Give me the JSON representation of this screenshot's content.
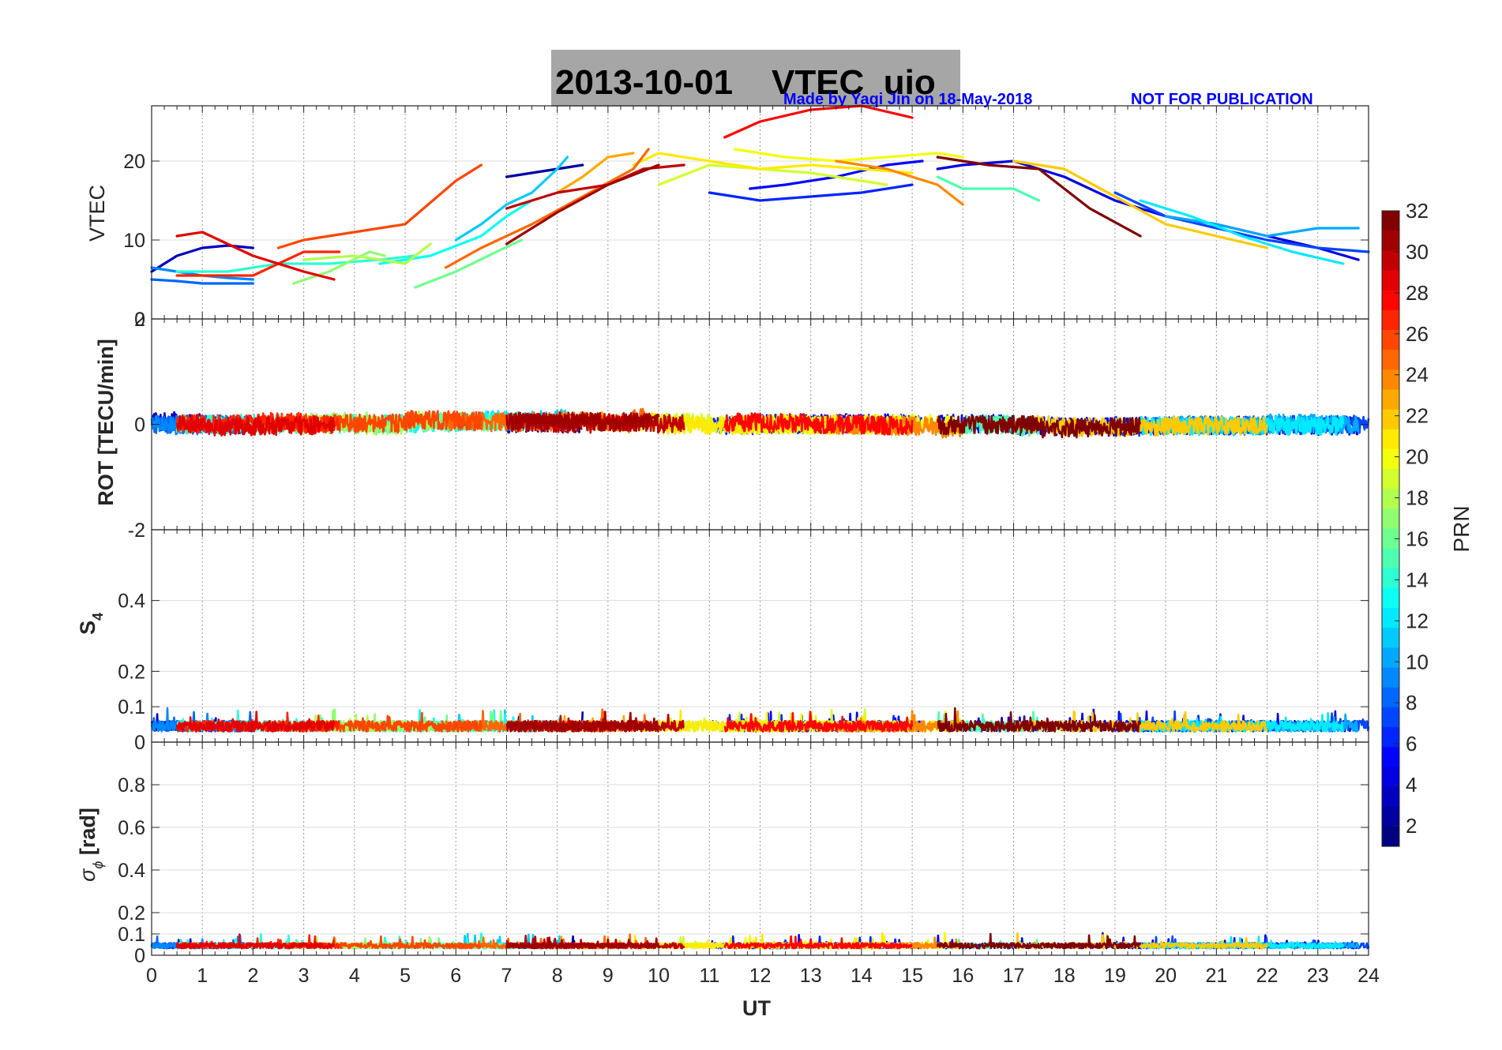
{
  "title": "2013-10-01    VTEC  uio",
  "credit": "Made by Yaqi Jin on 18-May-2018",
  "notice": "NOT FOR PUBLICATION",
  "colors": {
    "title_box": "#a6a6a6",
    "credit": "#0000ff",
    "grid": "#c8c8c8",
    "axis": "#262626"
  },
  "chart_data": [
    {
      "type": "line",
      "id": "vtec",
      "ylabel": "VTEC",
      "ylim": [
        0,
        27
      ],
      "yticks": [
        "0",
        "10",
        "20"
      ],
      "series": [
        {
          "prn": 2,
          "x": [
            7,
            7.5,
            8,
            8.5
          ],
          "y": [
            18,
            18.5,
            19,
            19.5
          ]
        },
        {
          "prn": 3,
          "x": [
            0,
            0.5,
            1,
            1.5,
            2
          ],
          "y": [
            6,
            8,
            9,
            9.3,
            9
          ]
        },
        {
          "prn": 4,
          "x": [
            15.5,
            16,
            17,
            18,
            19,
            20,
            21,
            22,
            23,
            23.8
          ],
          "y": [
            19,
            19.5,
            20,
            18,
            15,
            13,
            12,
            10.5,
            9,
            7.5
          ]
        },
        {
          "prn": 5,
          "x": [
            11.8,
            12.5,
            13.5,
            14.5,
            15.2
          ],
          "y": [
            16.5,
            17,
            18,
            19.5,
            20
          ]
        },
        {
          "prn": 6,
          "x": [
            11,
            11.5,
            12,
            13,
            14,
            15
          ],
          "y": [
            16,
            15.5,
            15,
            15.5,
            16,
            17
          ]
        },
        {
          "prn": 7,
          "x": [
            19,
            20,
            21,
            22,
            23,
            24
          ],
          "y": [
            16,
            13,
            11.5,
            10,
            9,
            8.5
          ]
        },
        {
          "prn": 8,
          "x": [
            0,
            0.5,
            1,
            2
          ],
          "y": [
            5,
            4.8,
            4.5,
            4.5
          ]
        },
        {
          "prn": 9,
          "x": [
            0,
            0.5,
            1,
            1.5,
            2
          ],
          "y": [
            6.5,
            6,
            5.5,
            5.2,
            5
          ]
        },
        {
          "prn": 10,
          "x": [
            20,
            21,
            22,
            23,
            23.8
          ],
          "y": [
            13,
            12,
            10.5,
            11.5,
            11.5
          ]
        },
        {
          "prn": 11,
          "x": [
            6,
            6.5,
            7,
            7.5,
            8,
            8.2
          ],
          "y": [
            10,
            12,
            14.5,
            16,
            19,
            20.5
          ]
        },
        {
          "prn": 12,
          "x": [
            19.5,
            20.5,
            21.5,
            22.5,
            23.5
          ],
          "y": [
            15,
            13,
            10.5,
            8.5,
            7
          ]
        },
        {
          "prn": 13,
          "x": [
            4.5,
            5.5,
            6.5,
            7,
            7.5
          ],
          "y": [
            7,
            8,
            10.5,
            13,
            15
          ]
        },
        {
          "prn": 14,
          "x": [
            0.5,
            1.5,
            2.5,
            3.5,
            4.5,
            5.2
          ],
          "y": [
            6,
            6,
            7,
            7,
            7.5,
            8
          ]
        },
        {
          "prn": 15,
          "x": [
            15.5,
            16,
            17,
            17.5
          ],
          "y": [
            18,
            16.5,
            16.5,
            15
          ]
        },
        {
          "prn": 16,
          "x": [
            5.2,
            6,
            6.8,
            7.3
          ],
          "y": [
            4,
            6,
            8.5,
            10
          ]
        },
        {
          "prn": 17,
          "x": [
            2.8,
            3.5,
            4.3,
            4.6
          ],
          "y": [
            4.5,
            6,
            8.5,
            8
          ]
        },
        {
          "prn": 18,
          "x": [
            3,
            4,
            5,
            5.5
          ],
          "y": [
            7.5,
            8,
            7,
            9.5
          ]
        },
        {
          "prn": 19,
          "x": [
            10,
            11,
            12,
            13,
            14.5
          ],
          "y": [
            17,
            19.5,
            19,
            18.5,
            17
          ]
        },
        {
          "prn": 20,
          "x": [
            11.5,
            12.5,
            13.5,
            14.5,
            15.5,
            16
          ],
          "y": [
            21.5,
            20.5,
            20,
            20.5,
            21,
            20.5
          ]
        },
        {
          "prn": 21,
          "x": [
            9.5,
            10,
            11,
            12,
            13,
            14,
            15
          ],
          "y": [
            19.5,
            21,
            20,
            19,
            19.5,
            19,
            18.5
          ]
        },
        {
          "prn": 22,
          "x": [
            17,
            18,
            19,
            20,
            21,
            22
          ],
          "y": [
            20,
            19,
            15.5,
            12,
            10.5,
            9
          ]
        },
        {
          "prn": 23,
          "x": [
            8,
            8.5,
            9,
            9.5
          ],
          "y": [
            16,
            18,
            20.5,
            21
          ]
        },
        {
          "prn": 24,
          "x": [
            13.5,
            14.5,
            15.5,
            16
          ],
          "y": [
            20,
            19,
            17,
            14.5
          ]
        },
        {
          "prn": 25,
          "x": [
            5.8,
            6.5,
            7.5,
            8.5,
            9.5,
            9.8
          ],
          "y": [
            6.5,
            9,
            12,
            15.5,
            19,
            21.5
          ]
        },
        {
          "prn": 26,
          "x": [
            2.5,
            3,
            4,
            5,
            6,
            6.5
          ],
          "y": [
            9,
            10,
            11,
            12,
            17.5,
            19.5
          ]
        },
        {
          "prn": 27,
          "x": [
            0.5,
            1,
            2,
            3,
            3.7
          ],
          "y": [
            5.5,
            5.5,
            5.5,
            8.5,
            8.5
          ]
        },
        {
          "prn": 28,
          "x": [
            11.3,
            12,
            13,
            14,
            15
          ],
          "y": [
            23,
            25,
            26.5,
            27,
            25.5
          ]
        },
        {
          "prn": 29,
          "x": [
            0.5,
            1,
            2,
            3,
            3.6
          ],
          "y": [
            10.5,
            11,
            8,
            6,
            5
          ]
        },
        {
          "prn": 30,
          "x": [
            7,
            8,
            9,
            9.7,
            10.5
          ],
          "y": [
            14,
            16,
            17,
            19,
            19.5
          ]
        },
        {
          "prn": 31,
          "x": [
            7,
            8,
            9,
            10
          ],
          "y": [
            9.5,
            13.5,
            17,
            19.5
          ]
        },
        {
          "prn": 32,
          "x": [
            15.5,
            16.5,
            17.5,
            18.5,
            19.5
          ],
          "y": [
            20.5,
            19.5,
            19,
            14,
            10.5
          ]
        }
      ]
    },
    {
      "type": "line",
      "id": "rot",
      "ylabel": "ROT [TECU/min]",
      "ylim": [
        -2,
        2
      ],
      "yticks": [
        "-2",
        "0",
        "2"
      ],
      "description": "dense noisy ROT traces per PRN, mostly within -0.3 to 0.3 TECU/min"
    },
    {
      "type": "line",
      "id": "s4",
      "ylabel_main": "S",
      "ylabel_sub": "4",
      "ylim": [
        0,
        0.6
      ],
      "yticks": [
        "0",
        "0.1",
        "0.2",
        "0.4"
      ],
      "description": "S4 index traces per PRN, mostly 0.03 to 0.08"
    },
    {
      "type": "line",
      "id": "sigma",
      "ylabel_main": "σ",
      "ylabel_sub": "ϕ",
      "ylabel_unit": " [rad]",
      "ylim": [
        0,
        1
      ],
      "yticks": [
        "0",
        "0.1",
        "0.2",
        "0.4",
        "0.6",
        "0.8"
      ],
      "description": "phase scintillation traces per PRN, mostly 0.03 to 0.08"
    }
  ],
  "x_axis": {
    "label": "UT",
    "range": [
      0,
      24
    ],
    "ticks": [
      "0",
      "1",
      "2",
      "3",
      "4",
      "5",
      "6",
      "7",
      "8",
      "9",
      "10",
      "11",
      "12",
      "13",
      "14",
      "15",
      "16",
      "17",
      "18",
      "19",
      "20",
      "21",
      "22",
      "23",
      "24"
    ]
  },
  "colorbar": {
    "label": "PRN",
    "range": [
      1,
      32
    ],
    "ticks": [
      "2",
      "4",
      "6",
      "8",
      "10",
      "12",
      "14",
      "16",
      "18",
      "20",
      "22",
      "24",
      "26",
      "28",
      "30",
      "32"
    ]
  }
}
